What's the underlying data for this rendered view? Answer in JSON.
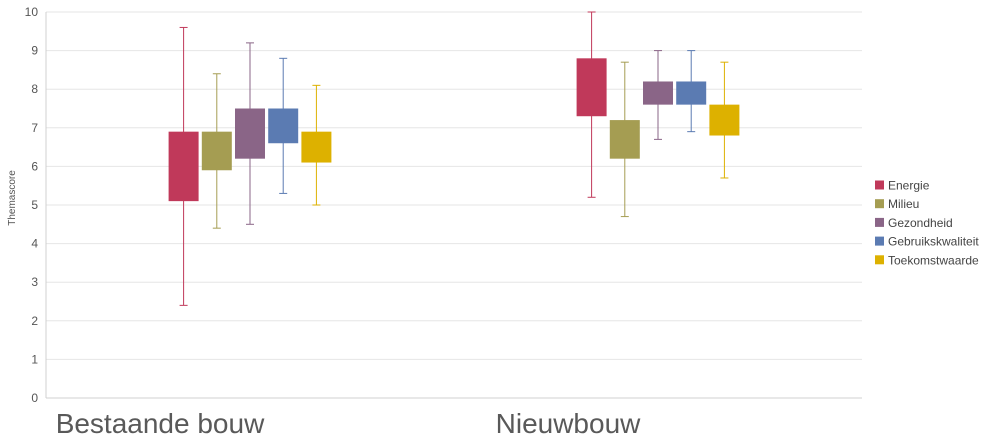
{
  "chart_data": {
    "type": "box",
    "ylabel": "Themascore",
    "xlabel": "",
    "ylim": [
      0,
      10
    ],
    "yticks": [
      "0",
      "1",
      "2",
      "3",
      "4",
      "5",
      "6",
      "7",
      "8",
      "9",
      "10"
    ],
    "grid": true,
    "legend_position": "right",
    "categories": [
      "Bestaande bouw",
      "Nieuwbouw"
    ],
    "series": [
      {
        "name": "Energie",
        "color": "#C0395A",
        "values": [
          {
            "min": 2.4,
            "q1": 5.1,
            "q3": 6.9,
            "max": 9.6
          },
          {
            "min": 5.2,
            "q1": 7.3,
            "q3": 8.8,
            "max": 10.0
          }
        ]
      },
      {
        "name": "Milieu",
        "color": "#A59D52",
        "values": [
          {
            "min": 4.4,
            "q1": 5.9,
            "q3": 6.9,
            "max": 8.4
          },
          {
            "min": 4.7,
            "q1": 6.2,
            "q3": 7.2,
            "max": 8.7
          }
        ]
      },
      {
        "name": "Gezondheid",
        "color": "#8A6587",
        "values": [
          {
            "min": 4.5,
            "q1": 6.2,
            "q3": 7.5,
            "max": 9.2
          },
          {
            "min": 6.7,
            "q1": 7.6,
            "q3": 8.2,
            "max": 9.0
          }
        ]
      },
      {
        "name": "Gebruikskwaliteit",
        "color": "#5B7BB2",
        "values": [
          {
            "min": 5.3,
            "q1": 6.6,
            "q3": 7.5,
            "max": 8.8
          },
          {
            "min": 6.9,
            "q1": 7.6,
            "q3": 8.2,
            "max": 9.0
          }
        ]
      },
      {
        "name": "Toekomstwaarde",
        "color": "#DDB100",
        "values": [
          {
            "min": 5.0,
            "q1": 6.1,
            "q3": 6.9,
            "max": 8.1
          },
          {
            "min": 5.7,
            "q1": 6.8,
            "q3": 7.6,
            "max": 8.7
          }
        ]
      }
    ]
  }
}
